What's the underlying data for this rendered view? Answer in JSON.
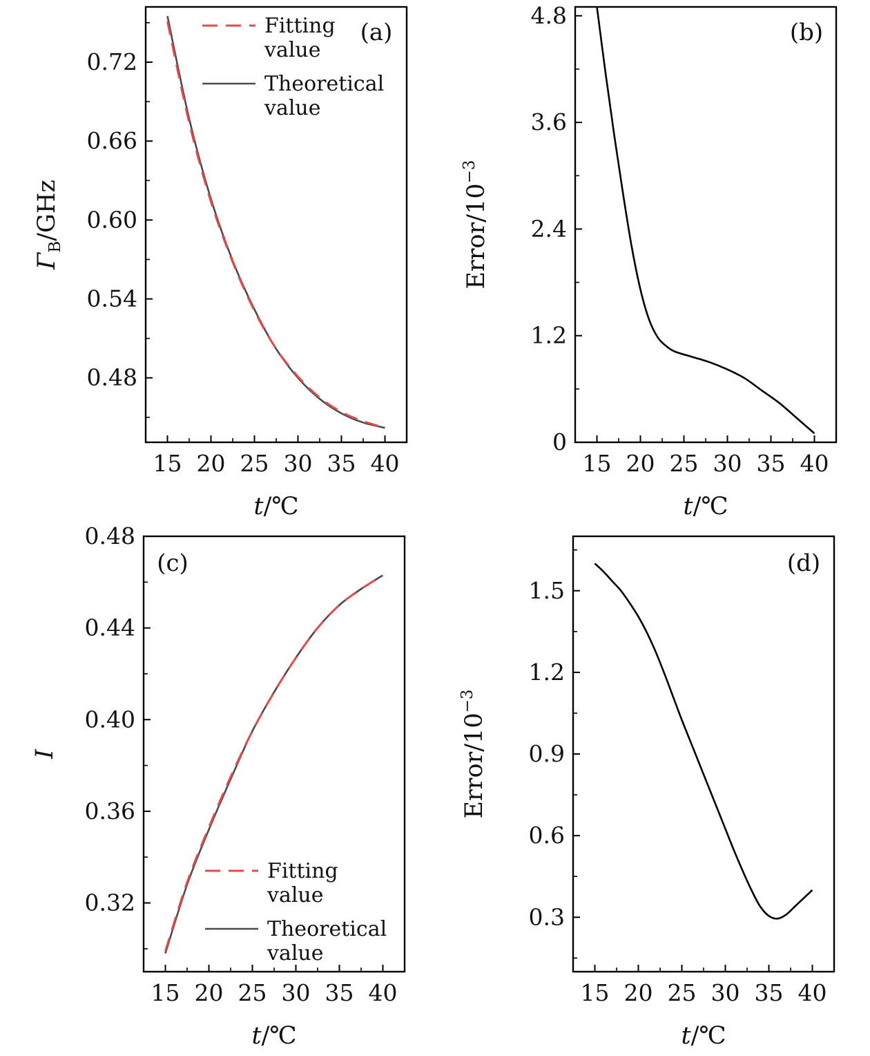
{
  "figure": {
    "panel_count": 4
  },
  "chart_data": [
    {
      "id": "a",
      "type": "line",
      "panel_label": "(a)",
      "xlabel": {
        "var": "t",
        "unit": "/℃"
      },
      "ylabel": {
        "prefix": "Γ",
        "sub": "B",
        "suffix": "/GHz"
      },
      "xlim": [
        12.5,
        42.5
      ],
      "ylim": [
        0.431,
        0.762
      ],
      "xticks": [
        15,
        20,
        25,
        30,
        35,
        40
      ],
      "xtick_labels": [
        "15",
        "20",
        "25",
        "30",
        "35",
        "40"
      ],
      "yticks": [
        0.48,
        0.54,
        0.6,
        0.66,
        0.72
      ],
      "ytick_labels": [
        "0.48",
        "0.54",
        "0.60",
        "0.66",
        "0.72"
      ],
      "legend": {
        "position": "top-right",
        "entries": [
          {
            "series": "fitting",
            "lines": [
              "Fitting",
              "value"
            ]
          },
          {
            "series": "theoretical",
            "lines": [
              "Theoretical",
              "value"
            ]
          }
        ]
      },
      "series": [
        {
          "name": "Theoretical value",
          "key": "theoretical",
          "style": "solid",
          "color": "#4a4a4a",
          "x": [
            15,
            17.5,
            20,
            22.5,
            25,
            27.5,
            30,
            32.5,
            35,
            37.5,
            40
          ],
          "y": [
            0.755,
            0.677,
            0.616,
            0.569,
            0.532,
            0.502,
            0.48,
            0.464,
            0.453,
            0.446,
            0.442
          ]
        },
        {
          "name": "Fitting value",
          "key": "fitting",
          "style": "dashed",
          "color": "#e34b4b",
          "x": [
            15,
            17.5,
            20,
            22.5,
            25,
            27.5,
            30,
            32.5,
            35,
            37.5,
            40
          ],
          "y": [
            0.751,
            0.674,
            0.614,
            0.568,
            0.531,
            0.502,
            0.481,
            0.465,
            0.454,
            0.447,
            0.442
          ]
        }
      ]
    },
    {
      "id": "b",
      "type": "line",
      "panel_label": "(b)",
      "xlabel": {
        "var": "t",
        "unit": "/℃"
      },
      "ylabel": {
        "prefix": "Error/10",
        "sup": "−3"
      },
      "xlim": [
        12.5,
        42.5
      ],
      "ylim": [
        0,
        4.9
      ],
      "xticks": [
        15,
        20,
        25,
        30,
        35,
        40
      ],
      "xtick_labels": [
        "15",
        "20",
        "25",
        "30",
        "35",
        "40"
      ],
      "yticks": [
        0,
        1.2,
        2.4,
        3.6,
        4.8
      ],
      "ytick_labels": [
        "0",
        "1.2",
        "2.4",
        "3.6",
        "4.8"
      ],
      "series": [
        {
          "name": "Error",
          "key": "error",
          "style": "solid",
          "color": "#000000",
          "x": [
            15,
            16,
            17,
            18,
            19,
            20,
            21,
            22,
            23,
            24,
            26,
            28,
            30,
            32,
            34,
            36,
            38,
            40
          ],
          "y": [
            4.9,
            4.15,
            3.45,
            2.8,
            2.2,
            1.72,
            1.38,
            1.18,
            1.08,
            1.02,
            0.96,
            0.9,
            0.82,
            0.72,
            0.58,
            0.44,
            0.27,
            0.1
          ]
        }
      ]
    },
    {
      "id": "c",
      "type": "line",
      "panel_label": "(c)",
      "xlabel": {
        "var": "t",
        "unit": "/℃"
      },
      "ylabel": {
        "prefix": "I"
      },
      "xlim": [
        12.5,
        42.5
      ],
      "ylim": [
        0.29,
        0.48
      ],
      "xticks": [
        15,
        20,
        25,
        30,
        35,
        40
      ],
      "xtick_labels": [
        "15",
        "20",
        "25",
        "30",
        "35",
        "40"
      ],
      "yticks": [
        0.32,
        0.36,
        0.4,
        0.44,
        0.48
      ],
      "ytick_labels": [
        "0.32",
        "0.36",
        "0.40",
        "0.44",
        "0.48"
      ],
      "legend": {
        "position": "bottom-right",
        "entries": [
          {
            "series": "fitting",
            "lines": [
              "Fitting",
              "value"
            ]
          },
          {
            "series": "theoretical",
            "lines": [
              "Theoretical",
              "value"
            ]
          }
        ]
      },
      "series": [
        {
          "name": "Theoretical value",
          "key": "theoretical",
          "style": "solid",
          "color": "#4a4a4a",
          "x": [
            15,
            17.5,
            20,
            22.5,
            25,
            27.5,
            30,
            32.5,
            35,
            37.5,
            40
          ],
          "y": [
            0.298,
            0.328,
            0.352,
            0.374,
            0.395,
            0.412,
            0.427,
            0.44,
            0.45,
            0.457,
            0.463
          ]
        },
        {
          "name": "Fitting value",
          "key": "fitting",
          "style": "dashed",
          "color": "#e34b4b",
          "x": [
            15,
            17.5,
            20,
            22.5,
            25,
            27.5,
            30,
            32.5,
            35,
            37.5,
            40
          ],
          "y": [
            0.299,
            0.329,
            0.353,
            0.375,
            0.395,
            0.412,
            0.427,
            0.44,
            0.45,
            0.457,
            0.463
          ]
        }
      ]
    },
    {
      "id": "d",
      "type": "line",
      "panel_label": "(d)",
      "xlabel": {
        "var": "t",
        "unit": "/℃"
      },
      "ylabel": {
        "prefix": "Error/10",
        "sup": "−3"
      },
      "xlim": [
        12.5,
        42.5
      ],
      "ylim": [
        0.1,
        1.7
      ],
      "xticks": [
        15,
        20,
        25,
        30,
        35,
        40
      ],
      "xtick_labels": [
        "15",
        "20",
        "25",
        "30",
        "35",
        "40"
      ],
      "yticks": [
        0.3,
        0.6,
        0.9,
        1.2,
        1.5
      ],
      "ytick_labels": [
        "0.3",
        "0.6",
        "0.9",
        "1.2",
        "1.5"
      ],
      "series": [
        {
          "name": "Error",
          "key": "error",
          "style": "solid",
          "color": "#000000",
          "x": [
            15,
            16,
            17,
            18,
            19,
            20,
            21,
            22,
            23,
            24,
            25,
            26,
            27,
            28,
            29,
            30,
            31,
            32,
            33,
            34,
            35,
            36,
            37,
            38,
            39,
            40
          ],
          "y": [
            1.6,
            1.57,
            1.535,
            1.5,
            1.455,
            1.405,
            1.345,
            1.275,
            1.195,
            1.11,
            1.025,
            0.945,
            0.865,
            0.785,
            0.705,
            0.625,
            0.545,
            0.47,
            0.4,
            0.34,
            0.305,
            0.295,
            0.31,
            0.34,
            0.37,
            0.4
          ]
        }
      ]
    }
  ]
}
